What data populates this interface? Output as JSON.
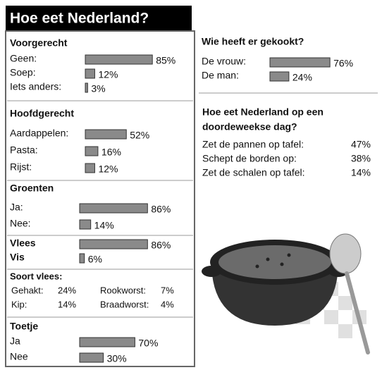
{
  "title": "Hoe eet Nederland?",
  "left": [
    {
      "heading": "Voorgerecht",
      "items": [
        {
          "label": "Geen:",
          "value": 85,
          "value_label": "85%"
        },
        {
          "label": "Soep:",
          "value": 12,
          "value_label": "12%"
        },
        {
          "label": "Iets anders:",
          "value": 3,
          "value_label": "3%"
        }
      ]
    },
    {
      "heading": "Hoofdgerecht",
      "items": [
        {
          "label": "Aardappelen:",
          "value": 52,
          "value_label": "52%"
        },
        {
          "label": "Pasta:",
          "value": 16,
          "value_label": "16%"
        },
        {
          "label": "Rijst:",
          "value": 12,
          "value_label": "12%"
        }
      ]
    },
    {
      "heading": "Groenten",
      "items": [
        {
          "label": "Ja:",
          "value": 86,
          "value_label": "86%"
        },
        {
          "label": "Nee:",
          "value": 14,
          "value_label": "14%"
        }
      ]
    },
    {
      "items": [
        {
          "label": "Vlees",
          "value": 86,
          "value_label": "86%",
          "bold": true
        },
        {
          "label": "Vis",
          "value": 6,
          "value_label": "6%",
          "bold": true
        }
      ]
    },
    {
      "heading": "Toetje",
      "items": [
        {
          "label": "Ja",
          "value": 70,
          "value_label": "70%"
        },
        {
          "label": "Nee",
          "value": 30,
          "value_label": "30%"
        }
      ]
    }
  ],
  "meat": {
    "heading": "Soort vlees:",
    "rows": [
      [
        {
          "label": "Gehakt:",
          "value": "24%"
        },
        {
          "label": "Rookworst:",
          "value": "7%"
        }
      ],
      [
        {
          "label": "Kip:",
          "value": "14%"
        },
        {
          "label": "Braadworst:",
          "value": "4%"
        }
      ]
    ]
  },
  "who": {
    "heading": "Wie heeft er gekookt?",
    "items": [
      {
        "label": "De vrouw:",
        "value": 76,
        "value_label": "76%"
      },
      {
        "label": "De man:",
        "value": 24,
        "value_label": "24%"
      }
    ]
  },
  "how": {
    "heading": [
      "Hoe eet Nederland op een",
      "doordeweekse dag?"
    ],
    "rows": [
      {
        "label": "Zet de pannen op tafel:",
        "value": "47%"
      },
      {
        "label": "Schept de borden op:",
        "value": "38%"
      },
      {
        "label": "Zet de schalen op tafel:",
        "value": "14%"
      }
    ]
  }
}
